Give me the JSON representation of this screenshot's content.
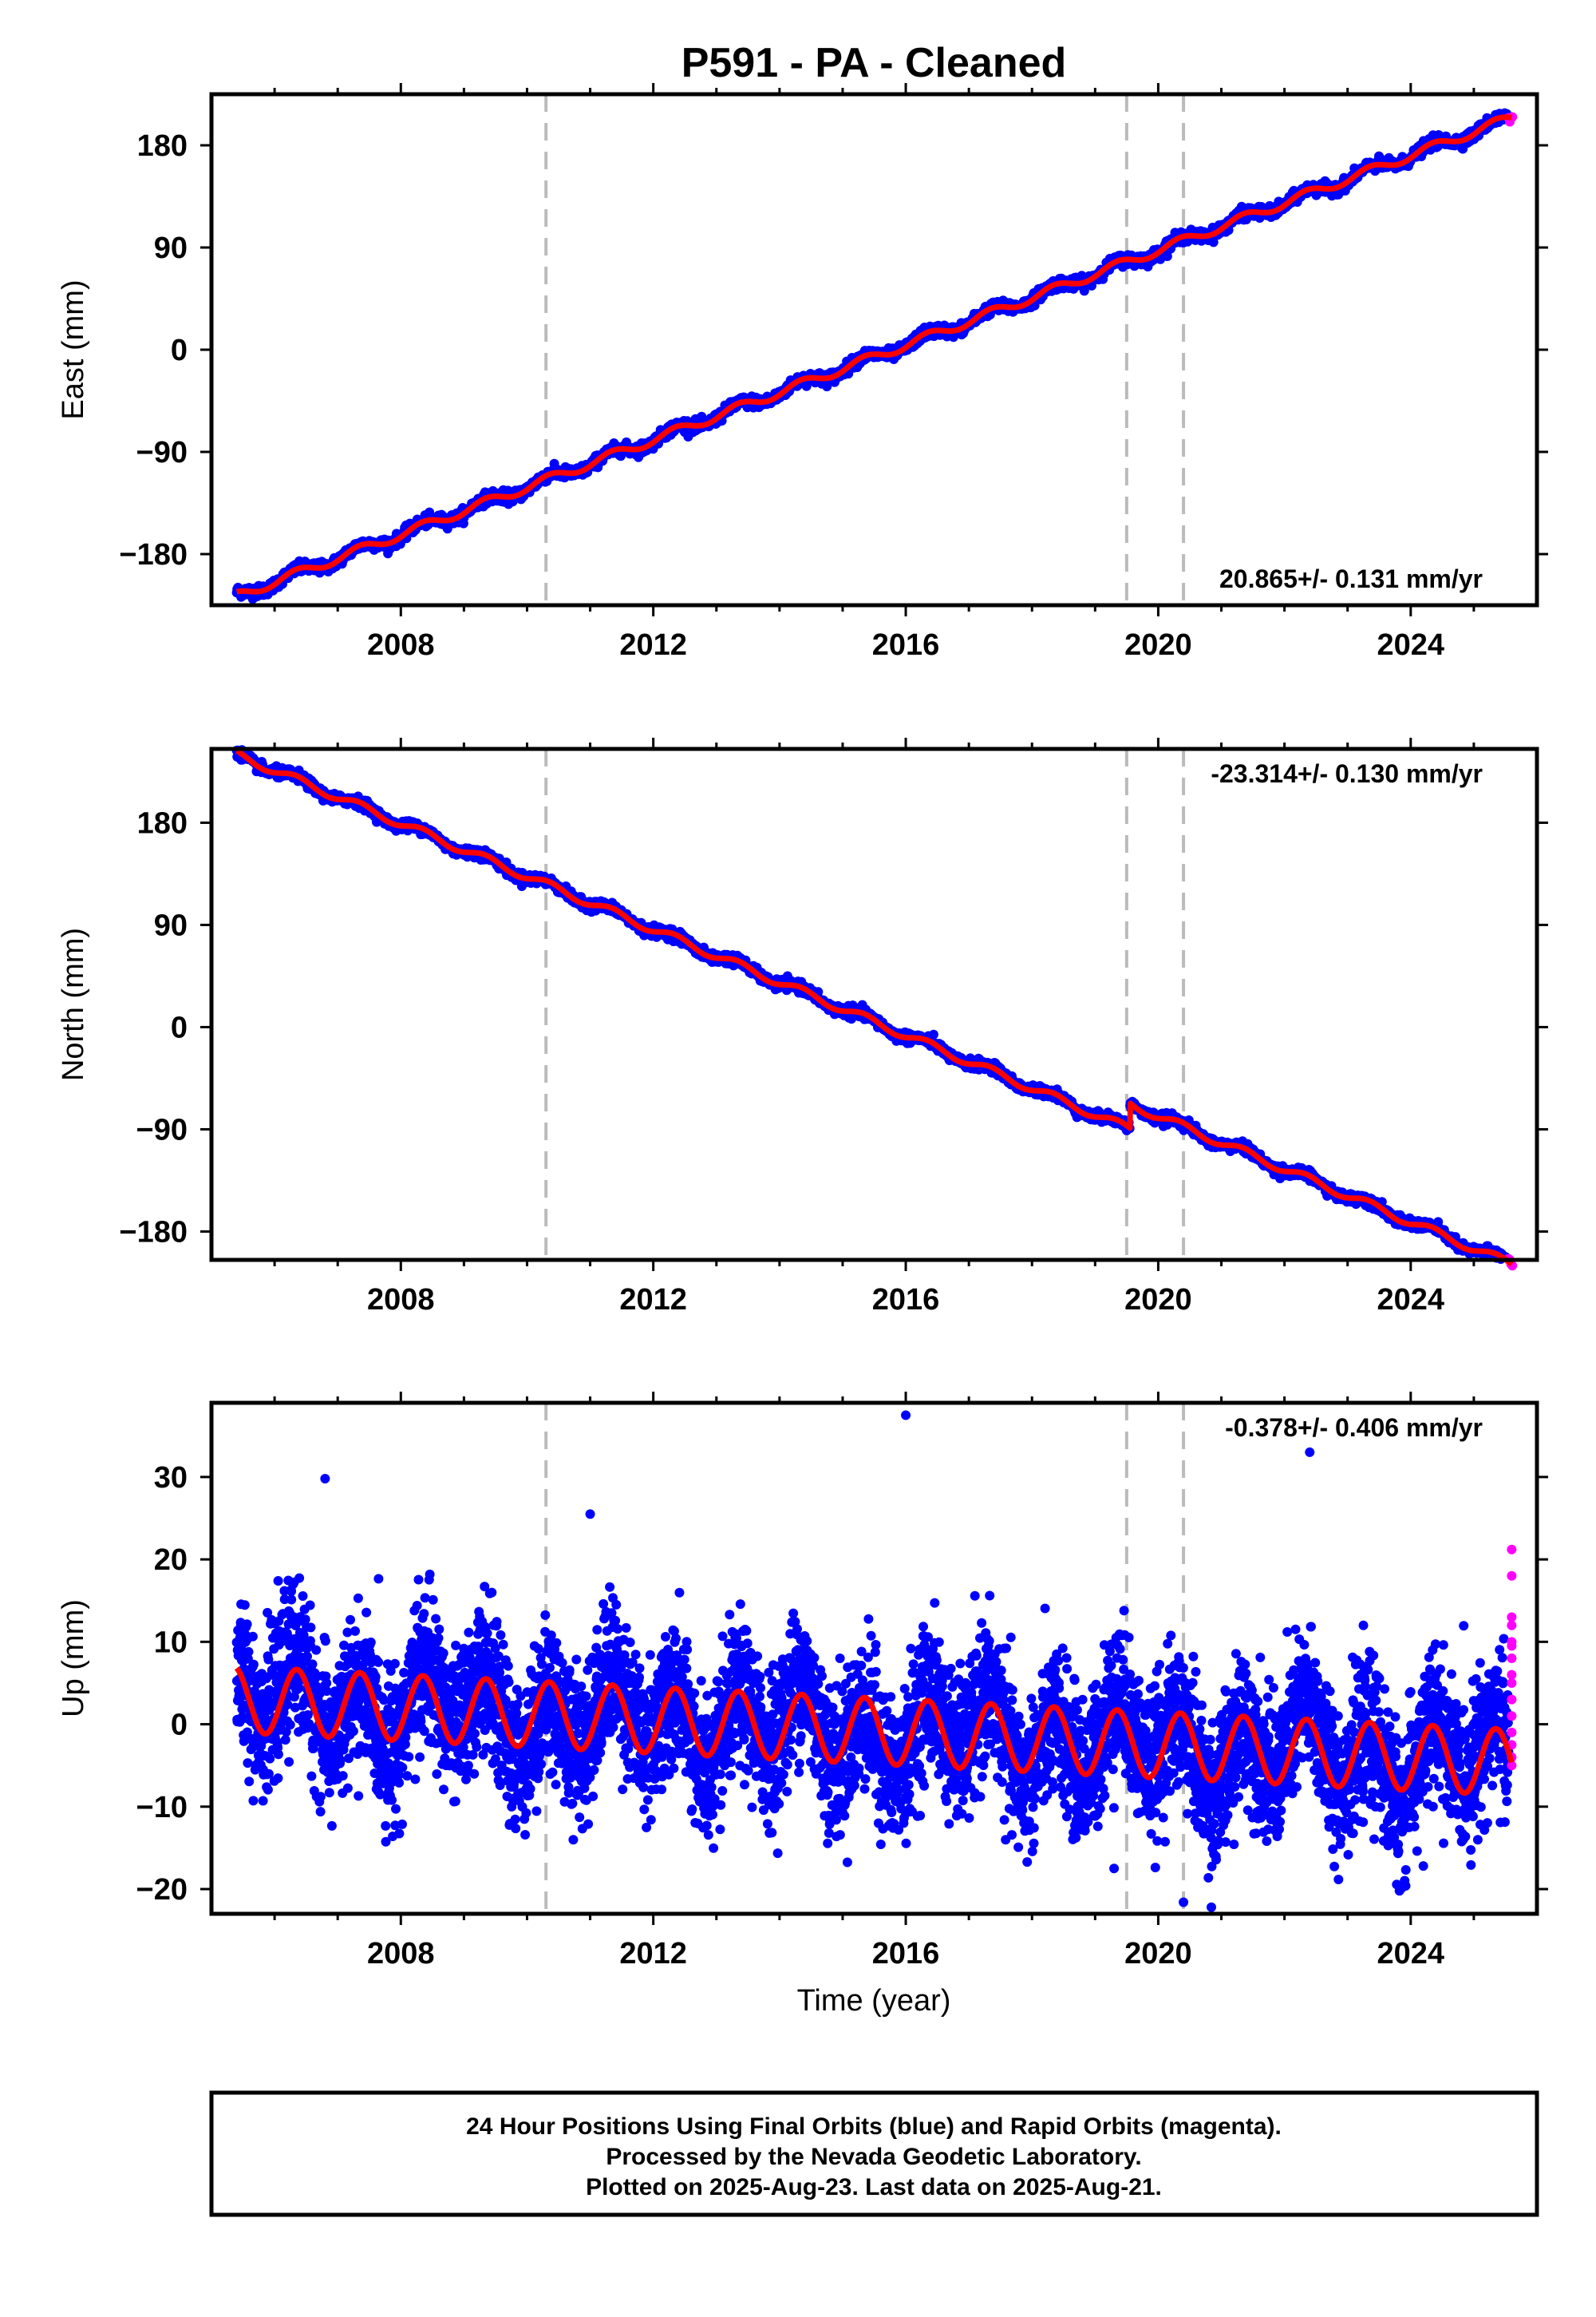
{
  "title": "P591  - PA - Cleaned",
  "xlabel": "Time (year)",
  "xticks": [
    2008,
    2012,
    2016,
    2020,
    2024
  ],
  "event_lines": [
    2010.3,
    2019.5,
    2020.4
  ],
  "colors": {
    "final": "#0000ff",
    "rapid": "#ff00ff",
    "model": "#ff0000",
    "event": "#bbbbbb"
  },
  "footer": {
    "line1": "24 Hour Positions Using Final Orbits (blue) and Rapid Orbits (magenta).",
    "line2": "Processed by the Nevada Geodetic Laboratory.",
    "line3": "Plotted on 2025-Aug-23. Last data on 2025-Aug-21."
  },
  "chart_data": [
    {
      "type": "scatter",
      "component": "east",
      "ylabel": "East (mm)",
      "rate": "20.865+/- 0.131 mm/yr",
      "rate_position": "bottom-right",
      "xlim": [
        2005.0,
        2026.0
      ],
      "ylim": [
        -225,
        225
      ],
      "yticks": [
        -180,
        -90,
        0,
        90,
        180
      ],
      "yticklabels": [
        "−180",
        "−90",
        "0",
        "90",
        "180"
      ],
      "trend": {
        "x0": 2005.4,
        "y0": -217,
        "velocity": 20.865
      },
      "seasonal_amplitude": 4,
      "offsets": [],
      "noise_sd": 2.5,
      "series_x": [
        2005.4,
        2008.0,
        2012.0,
        2016.0,
        2019.5,
        2020.0,
        2024.0,
        2025.6
      ],
      "series_y": [
        -217,
        -163,
        -80,
        3,
        75,
        89,
        173,
        207
      ]
    },
    {
      "type": "scatter",
      "component": "north",
      "ylabel": "North (mm)",
      "rate": "-23.314+/- 0.130 mm/yr",
      "rate_position": "top-right",
      "xlim": [
        2005.0,
        2026.0
      ],
      "ylim": [
        -205,
        245
      ],
      "yticks": [
        -180,
        -90,
        0,
        90,
        180
      ],
      "yticklabels": [
        "−180",
        "−90",
        "0",
        "90",
        "180"
      ],
      "trend": {
        "x0": 2005.4,
        "y0": 240,
        "velocity": -23.314
      },
      "seasonal_amplitude": 3.5,
      "offsets": [
        {
          "year": 2019.55,
          "value": 22
        }
      ],
      "noise_sd": 2.2,
      "series_x": [
        2005.4,
        2008.0,
        2012.0,
        2016.0,
        2019.5,
        2019.6,
        2020.0,
        2024.0,
        2025.6
      ],
      "series_y": [
        240,
        183,
        87,
        -5,
        -88,
        -70,
        -85,
        -175,
        -190
      ]
    },
    {
      "type": "scatter",
      "component": "up",
      "ylabel": "Up (mm)",
      "rate": "-0.378+/- 0.406 mm/yr",
      "rate_position": "top-right",
      "xlim": [
        2005.0,
        2026.0
      ],
      "ylim": [
        -23,
        39
      ],
      "yticks": [
        -20,
        -10,
        0,
        10,
        20,
        30
      ],
      "yticklabels": [
        "−20",
        "−10",
        "0",
        "10",
        "20",
        "30"
      ],
      "trend": {
        "x0": 2005.4,
        "y0": 3.0,
        "velocity": -0.378
      },
      "seasonal_amplitude": 4.0,
      "offsets": [],
      "noise_sd": 4.3,
      "rapid_points_y": [
        21.2,
        18,
        13,
        12,
        10,
        9.5,
        8,
        6,
        5,
        3,
        1,
        -1,
        -2.5,
        -4,
        -5
      ],
      "outliers": [
        [
          2016.0,
          37.5
        ],
        [
          2006.8,
          29.8
        ],
        [
          2022.4,
          33.0
        ],
        [
          2011.0,
          25.5
        ],
        [
          2020.4,
          -21.6
        ],
        [
          2019.3,
          -17.5
        ],
        [
          2024.2,
          -17.2
        ]
      ]
    }
  ]
}
